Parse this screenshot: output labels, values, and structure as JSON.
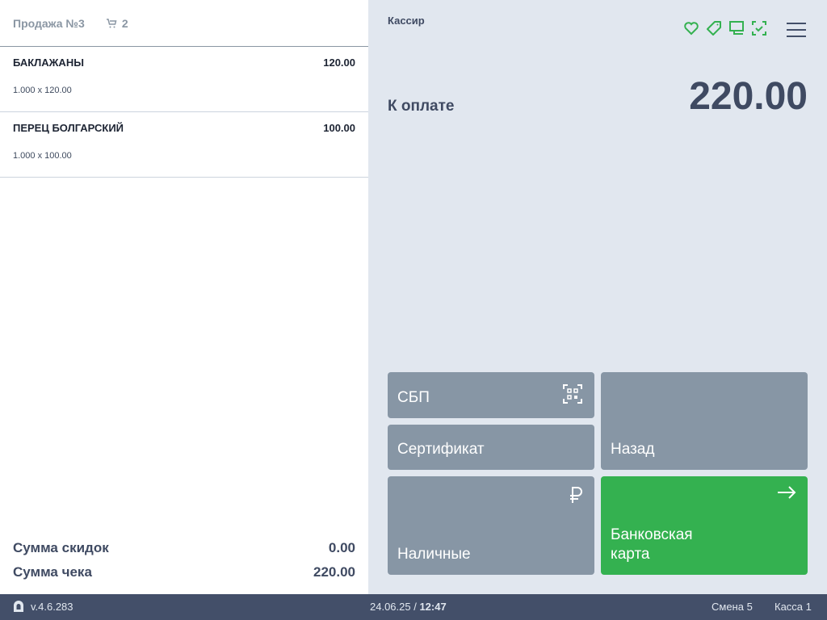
{
  "sale": {
    "title": "Продажа №3",
    "cart_count": "2"
  },
  "items": [
    {
      "name": "БАКЛАЖАНЫ",
      "price": "120.00",
      "qty": "1.000 x 120.00"
    },
    {
      "name": "ПЕРЕЦ БОЛГАРСКИЙ",
      "price": "100.00",
      "qty": "1.000 x 100.00"
    }
  ],
  "totals": {
    "discount_label": "Сумма скидок",
    "discount": "0.00",
    "check_label": "Сумма чека",
    "check": "220.00"
  },
  "right": {
    "cashier": "Кассир",
    "to_pay_label": "К оплате",
    "to_pay": "220.00"
  },
  "buttons": {
    "sbp": "СБП",
    "certificate": "Сертификат",
    "cash": "Наличные",
    "back": "Назад",
    "card": "Банковская карта"
  },
  "status_icons": [
    "heart-icon",
    "tag-icon",
    "monitor-icon",
    "scan-check-icon"
  ],
  "colors": {
    "accent": "#34b150",
    "button": "#8796a5",
    "footer": "#434f69",
    "panel": "#e1e7ef"
  },
  "footer": {
    "version": "v.4.6.283",
    "date": "24.06.25",
    "time": "12:47",
    "shift": "Смена 5",
    "register": "Касса 1"
  }
}
